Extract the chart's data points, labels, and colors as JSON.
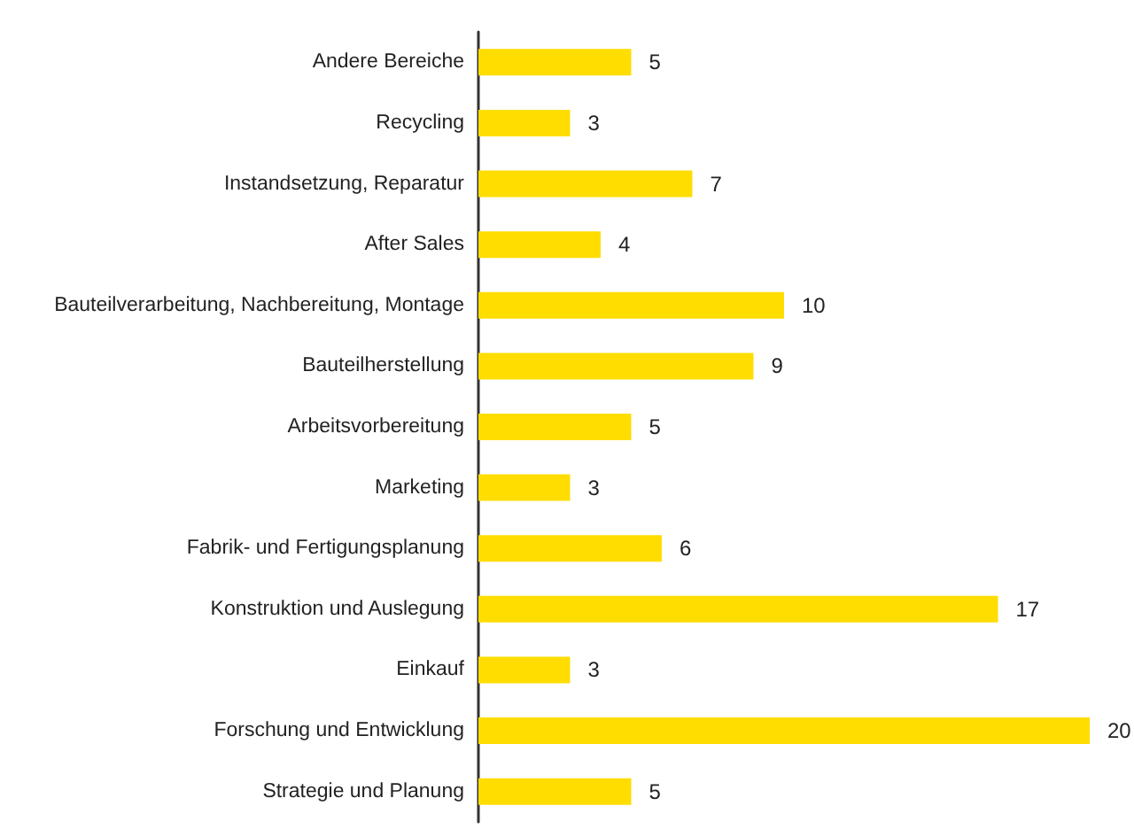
{
  "chart_data": {
    "type": "bar",
    "orientation": "horizontal",
    "categories": [
      "Andere Bereiche",
      "Recycling",
      "Instandsetzung, Reparatur",
      "After Sales",
      "Bauteilverarbeitung, Nachbereitung, Montage",
      "Bauteilherstellung",
      "Arbeitsvorbereitung",
      "Marketing",
      "Fabrik- und Fertigungsplanung",
      "Konstruktion und Auslegung",
      "Einkauf",
      "Forschung und Entwicklung",
      "Strategie und Planung"
    ],
    "values": [
      5,
      3,
      7,
      4,
      10,
      9,
      5,
      3,
      6,
      17,
      3,
      20,
      5
    ],
    "color": "#ffdd00",
    "data_labels": true
  }
}
